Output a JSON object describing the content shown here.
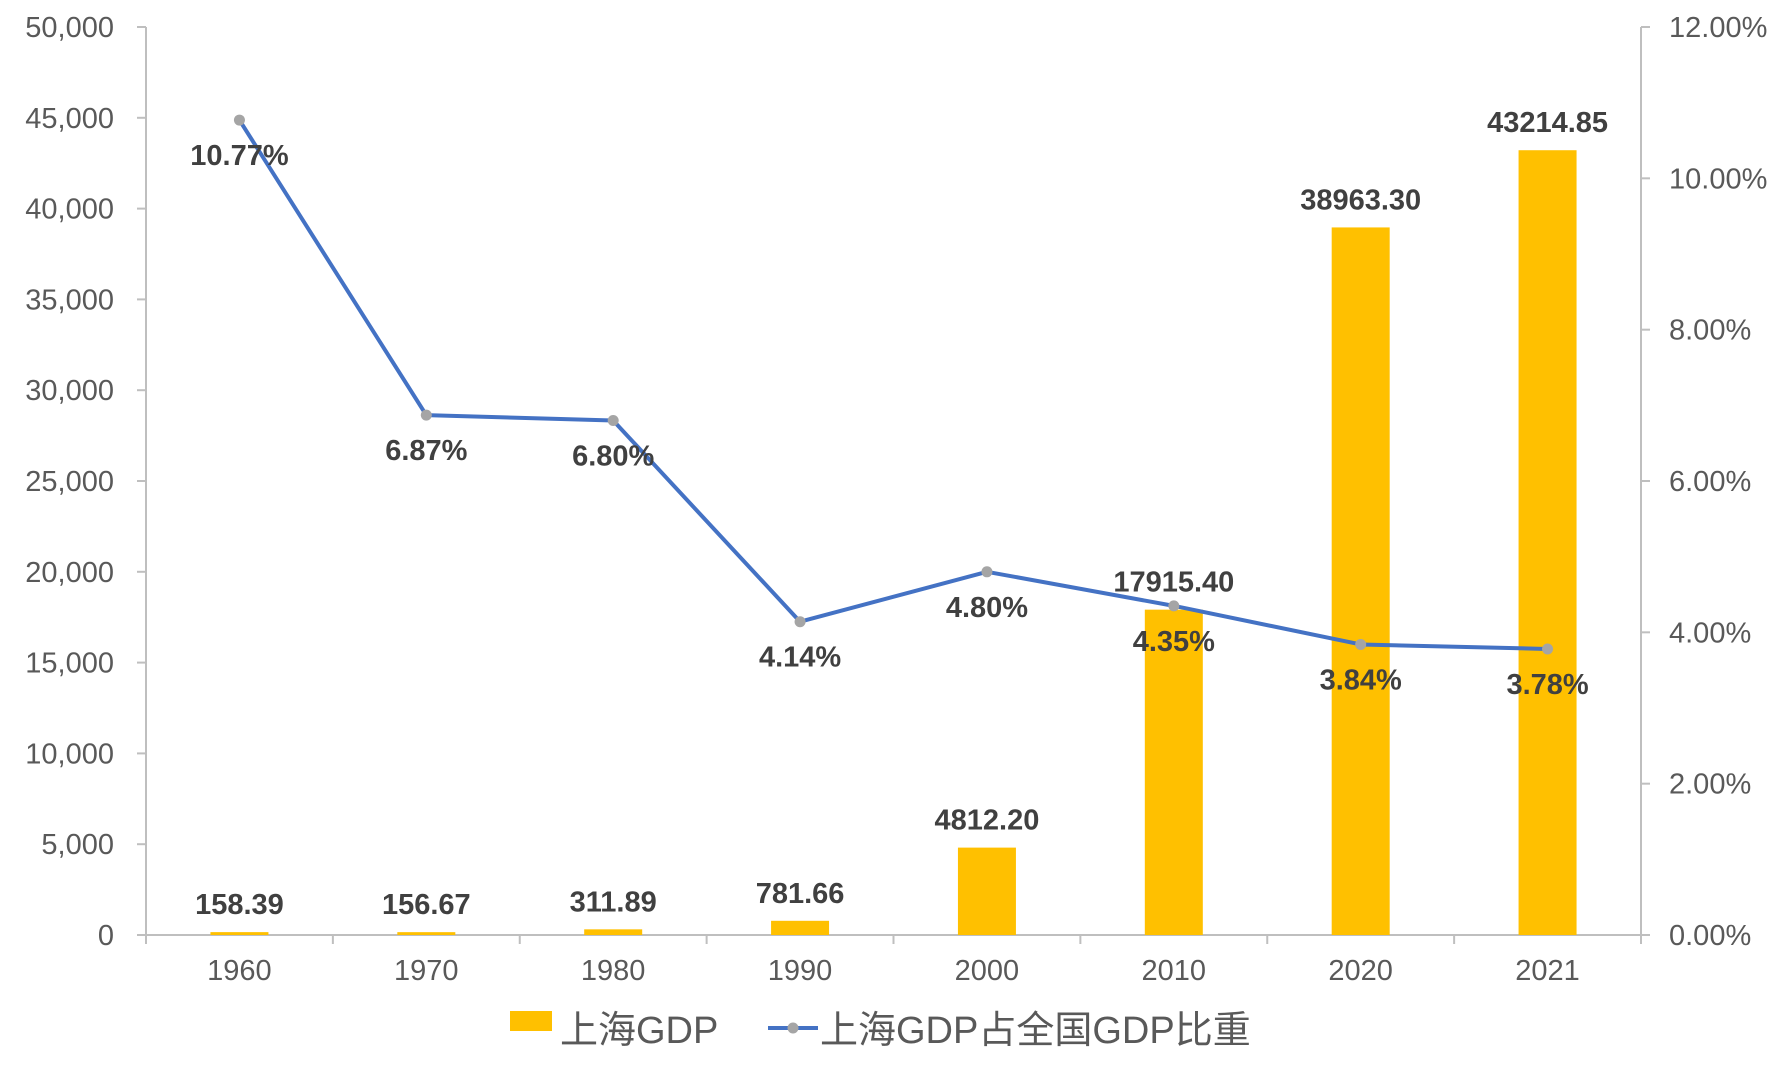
{
  "chart_data": {
    "type": "bar",
    "categories": [
      "1960",
      "1970",
      "1980",
      "1990",
      "2000",
      "2010",
      "2020",
      "2021"
    ],
    "series": [
      {
        "name": "上海GDP",
        "type": "bar",
        "axis": "left",
        "color": "#ffc000",
        "values": [
          158.39,
          156.67,
          311.89,
          781.66,
          4812.2,
          17915.4,
          38963.3,
          43214.85
        ],
        "labels": [
          "158.39",
          "156.67",
          "311.89",
          "781.66",
          "4812.20",
          "17915.40",
          "38963.30",
          "43214.85"
        ]
      },
      {
        "name": "上海GDP占全国GDP比重",
        "type": "line",
        "axis": "right",
        "color": "#4472c4",
        "marker_color": "#a5a5a5",
        "values": [
          10.77,
          6.87,
          6.8,
          4.14,
          4.8,
          4.35,
          3.84,
          3.78
        ],
        "labels": [
          "10.77%",
          "6.87%",
          "6.80%",
          "4.14%",
          "4.80%",
          "4.35%",
          "3.84%",
          "3.78%"
        ]
      }
    ],
    "ylim": [
      0,
      50000
    ],
    "y2lim": [
      0,
      12
    ],
    "yticks": [
      "0",
      "5,000",
      "10,000",
      "15,000",
      "20,000",
      "25,000",
      "30,000",
      "35,000",
      "40,000",
      "45,000",
      "50,000"
    ],
    "y2ticks": [
      "0.00%",
      "2.00%",
      "4.00%",
      "6.00%",
      "8.00%",
      "10.00%",
      "12.00%"
    ],
    "grid": false,
    "legend": "bottom",
    "title": "",
    "xlabel": "",
    "ylabel": ""
  }
}
